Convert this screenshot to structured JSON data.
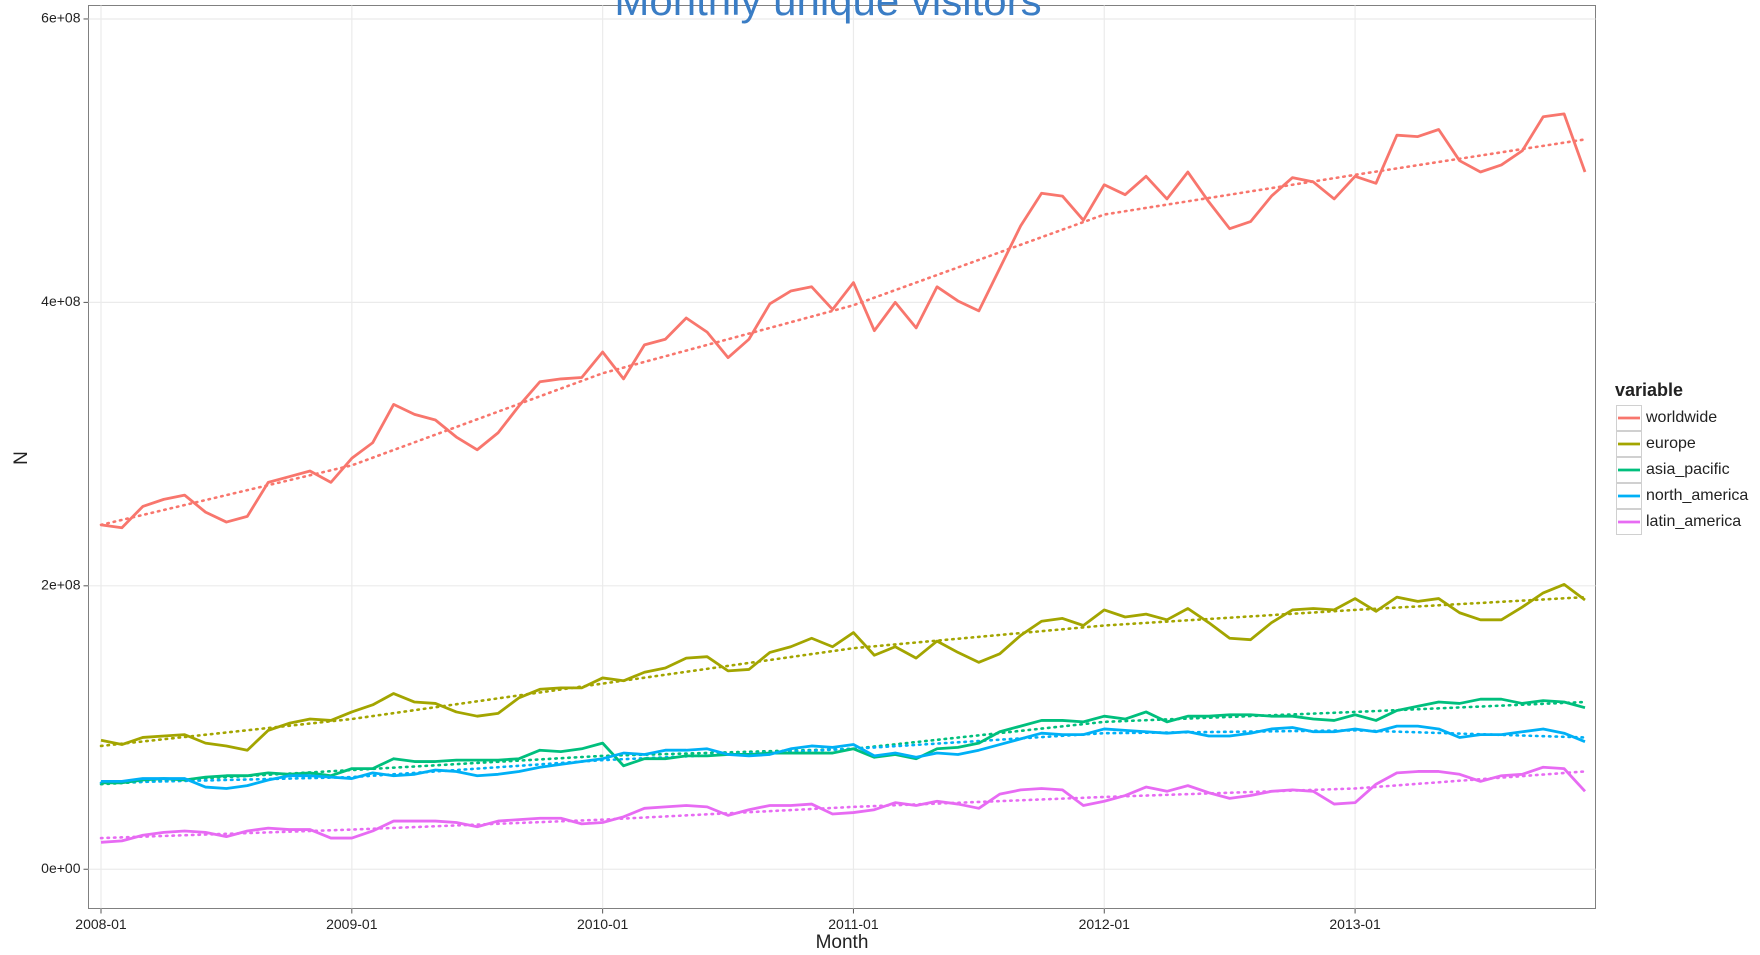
{
  "chart_data": {
    "type": "line",
    "title": "Monthly unique visitors",
    "x_label": "Month",
    "y_label": "N",
    "legend_title": "variable",
    "legend_position": "right",
    "grid": true,
    "x": [
      "2008-01",
      "2008-02",
      "2008-03",
      "2008-04",
      "2008-05",
      "2008-06",
      "2008-07",
      "2008-08",
      "2008-09",
      "2008-10",
      "2008-11",
      "2008-12",
      "2009-01",
      "2009-02",
      "2009-03",
      "2009-04",
      "2009-05",
      "2009-06",
      "2009-07",
      "2009-08",
      "2009-09",
      "2009-10",
      "2009-11",
      "2009-12",
      "2010-01",
      "2010-02",
      "2010-03",
      "2010-04",
      "2010-05",
      "2010-06",
      "2010-07",
      "2010-08",
      "2010-09",
      "2010-10",
      "2010-11",
      "2010-12",
      "2011-01",
      "2011-02",
      "2011-03",
      "2011-04",
      "2011-05",
      "2011-06",
      "2011-07",
      "2011-08",
      "2011-09",
      "2011-10",
      "2011-11",
      "2011-12",
      "2012-01",
      "2012-02",
      "2012-03",
      "2012-04",
      "2012-05",
      "2012-06",
      "2012-07",
      "2012-08",
      "2012-09",
      "2012-10",
      "2012-11",
      "2012-12",
      "2013-01",
      "2013-02",
      "2013-03",
      "2013-04",
      "2013-05",
      "2013-06",
      "2013-07",
      "2013-08",
      "2013-09",
      "2013-10",
      "2013-11",
      "2013-12"
    ],
    "xticks": [
      "2008-01",
      "2009-01",
      "2010-01",
      "2011-01",
      "2012-01",
      "2013-01"
    ],
    "ylim": [
      -27700000,
      609500000
    ],
    "yticks": [
      {
        "value": 0,
        "label": "0e+00"
      },
      {
        "value": 200000000,
        "label": "2e+08"
      },
      {
        "value": 400000000,
        "label": "4e+08"
      },
      {
        "value": 600000000,
        "label": "6e+08"
      }
    ],
    "trend_x": [
      "2008-01",
      "2009-01",
      "2010-01",
      "2011-01",
      "2012-01",
      "2013-01",
      "2013-12"
    ],
    "series": [
      {
        "name": "worldwide",
        "color": "#F8766D",
        "values": [
          243000000.0,
          241000000.0,
          256000000.0,
          261000000.0,
          264000000.0,
          252000000.0,
          245000000.0,
          249000000.0,
          273000000.0,
          277000000.0,
          281000000.0,
          273000000.0,
          290000000.0,
          301000000.0,
          328000000.0,
          321000000.0,
          317000000.0,
          305000000.0,
          296000000.0,
          308000000.0,
          327000000.0,
          344000000.0,
          346000000.0,
          347000000.0,
          365000000.0,
          346000000.0,
          370000000.0,
          374000000.0,
          389000000.0,
          379000000.0,
          361000000.0,
          374000000.0,
          399000000.0,
          408000000.0,
          411000000.0,
          395000000.0,
          414000000.0,
          380000000.0,
          400000000.0,
          382000000.0,
          411000000.0,
          401000000.0,
          394000000.0,
          424000000.0,
          454000000.0,
          477000000.0,
          475000000.0,
          458000000.0,
          483000000.0,
          476000000.0,
          489000000.0,
          473000000.0,
          492000000.0,
          471000000.0,
          452000000.0,
          457000000.0,
          475000000.0,
          488000000.0,
          485000000.0,
          473000000.0,
          489000000.0,
          484000000.0,
          518000000.0,
          517000000.0,
          522000000.0,
          500000000.0,
          492000000.0,
          497000000.0,
          507000000.0,
          531000000.0,
          533000000.0,
          492000000.0
        ],
        "trend": [
          243000000.0,
          285000000.0,
          350000000.0,
          398000000.0,
          462000000.0,
          490000000.0,
          515000000.0
        ]
      },
      {
        "name": "europe",
        "color": "#A3A500",
        "values": [
          91000000.0,
          88000000.0,
          93000000.0,
          94000000.0,
          95000000.0,
          89000000.0,
          87000000.0,
          84000000.0,
          98000000.0,
          103000000.0,
          106000000.0,
          105000000.0,
          111000000.0,
          116000000.0,
          124000000.0,
          118000000.0,
          117000000.0,
          111000000.0,
          108000000.0,
          110000000.0,
          121000000.0,
          127000000.0,
          128000000.0,
          128000000.0,
          135000000.0,
          133000000.0,
          139000000.0,
          142000000.0,
          149000000.0,
          150000000.0,
          140000000.0,
          141000000.0,
          153000000.0,
          157000000.0,
          163000000.0,
          157000000.0,
          167000000.0,
          151000000.0,
          157000000.0,
          149000000.0,
          161000000.0,
          153000000.0,
          146000000.0,
          152000000.0,
          165000000.0,
          175000000.0,
          177000000.0,
          172000000.0,
          183000000.0,
          178000000.0,
          180000000.0,
          176000000.0,
          184000000.0,
          174000000.0,
          163000000.0,
          162000000.0,
          174000000.0,
          183000000.0,
          184000000.0,
          183000000.0,
          191000000.0,
          182000000.0,
          192000000.0,
          189000000.0,
          191000000.0,
          181000000.0,
          176000000.0,
          176000000.0,
          185000000.0,
          195000000.0,
          201000000.0,
          190000000.0
        ],
        "trend": [
          87000000.0,
          106000000.0,
          131000000.0,
          156000000.0,
          172000000.0,
          183000000.0,
          192000000.0
        ]
      },
      {
        "name": "asia_pacific",
        "color": "#00BF7D",
        "values": [
          61000000.0,
          61000000.0,
          63000000.0,
          64000000.0,
          63000000.0,
          65000000.0,
          66000000.0,
          66000000.0,
          68000000.0,
          67000000.0,
          68000000.0,
          66000000.0,
          71000000.0,
          71000000.0,
          78000000.0,
          76000000.0,
          76000000.0,
          77000000.0,
          77000000.0,
          77000000.0,
          78000000.0,
          84000000.0,
          83000000.0,
          85000000.0,
          89000000.0,
          73000000.0,
          78000000.0,
          78000000.0,
          80000000.0,
          80000000.0,
          81000000.0,
          81000000.0,
          82000000.0,
          82000000.0,
          82000000.0,
          82000000.0,
          85000000.0,
          79000000.0,
          81000000.0,
          78000000.0,
          85000000.0,
          86000000.0,
          89000000.0,
          97000000.0,
          101000000.0,
          105000000.0,
          105000000.0,
          104000000.0,
          108000000.0,
          106000000.0,
          111000000.0,
          104000000.0,
          108000000.0,
          108000000.0,
          109000000.0,
          109000000.0,
          108000000.0,
          108000000.0,
          106000000.0,
          105000000.0,
          109000000.0,
          105000000.0,
          112000000.0,
          115000000.0,
          118000000.0,
          117000000.0,
          120000000.0,
          120000000.0,
          117000000.0,
          119000000.0,
          118000000.0,
          114000000.0
        ],
        "trend": [
          60000000.0,
          70000000.0,
          80000000.0,
          85000000.0,
          104000000.0,
          111000000.0,
          118000000.0
        ]
      },
      {
        "name": "north_america",
        "color": "#00B0F6",
        "values": [
          62000000.0,
          62000000.0,
          64000000.0,
          64000000.0,
          64000000.0,
          58000000.0,
          57000000.0,
          59000000.0,
          63000000.0,
          66000000.0,
          66000000.0,
          65000000.0,
          64000000.0,
          68000000.0,
          66000000.0,
          67000000.0,
          70000000.0,
          69000000.0,
          66000000.0,
          67000000.0,
          69000000.0,
          72000000.0,
          74000000.0,
          76000000.0,
          78000000.0,
          82000000.0,
          81000000.0,
          84000000.0,
          84000000.0,
          85000000.0,
          81000000.0,
          80000000.0,
          81000000.0,
          85000000.0,
          87000000.0,
          86000000.0,
          88000000.0,
          80000000.0,
          82000000.0,
          79000000.0,
          82000000.0,
          81000000.0,
          84000000.0,
          88000000.0,
          92000000.0,
          96000000.0,
          95000000.0,
          95000000.0,
          99000000.0,
          98000000.0,
          97000000.0,
          96000000.0,
          97000000.0,
          94000000.0,
          94000000.0,
          96000000.0,
          99000000.0,
          100000000.0,
          97000000.0,
          97000000.0,
          99000000.0,
          97000000.0,
          101000000.0,
          101000000.0,
          99000000.0,
          93000000.0,
          95000000.0,
          95000000.0,
          97000000.0,
          99000000.0,
          96000000.0,
          90000000.0
        ],
        "trend": [
          61000000.0,
          65000000.0,
          77000000.0,
          85000000.0,
          96000000.0,
          98000000.0,
          93000000.0
        ]
      },
      {
        "name": "latin_america",
        "color": "#E76BF3",
        "values": [
          19000000.0,
          20000000.0,
          24000000.0,
          26000000.0,
          27000000.0,
          26000000.0,
          23000000.0,
          27000000.0,
          29000000.0,
          28000000.0,
          28000000.0,
          22000000.0,
          22000000.0,
          27000000.0,
          34000000.0,
          34000000.0,
          34000000.0,
          33000000.0,
          30000000.0,
          34000000.0,
          35000000.0,
          36000000.0,
          36000000.0,
          32000000.0,
          33000000.0,
          37000000.0,
          43000000.0,
          44000000.0,
          45000000.0,
          44000000.0,
          38000000.0,
          42000000.0,
          45000000.0,
          45000000.0,
          46000000.0,
          39000000.0,
          40000000.0,
          42000000.0,
          47000000.0,
          45000000.0,
          48000000.0,
          46000000.0,
          43000000.0,
          53000000.0,
          56000000.0,
          57000000.0,
          56000000.0,
          45000000.0,
          48000000.0,
          52000000.0,
          58000000.0,
          55000000.0,
          59000000.0,
          54000000.0,
          50000000.0,
          52000000.0,
          55000000.0,
          56000000.0,
          55000000.0,
          46000000.0,
          47000000.0,
          60000000.0,
          68000000.0,
          69000000.0,
          69000000.0,
          67000000.0,
          62000000.0,
          66000000.0,
          67000000.0,
          72000000.0,
          71000000.0,
          55000000.0
        ],
        "trend": [
          22000000.0,
          28000000.0,
          35000000.0,
          44000000.0,
          51000000.0,
          57000000.0,
          69000000.0
        ]
      }
    ]
  }
}
